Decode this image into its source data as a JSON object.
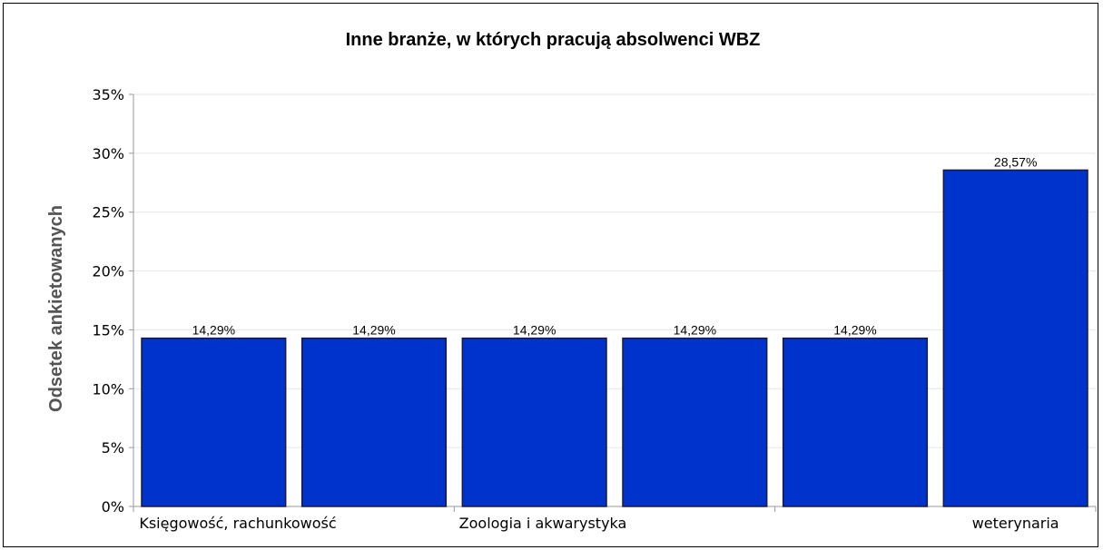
{
  "chart_data": {
    "type": "bar",
    "title": "Inne branże, w których pracują absolwenci WBZ",
    "xlabel": "",
    "ylabel": "Odsetek ankietowanych",
    "ylim": [
      0,
      35
    ],
    "yticks": [
      "0%",
      "5%",
      "10%",
      "15%",
      "20%",
      "25%",
      "30%",
      "35%"
    ],
    "ytick_values": [
      0,
      5,
      10,
      15,
      20,
      25,
      30,
      35
    ],
    "categories": [
      "Księgowość, rachunkowość",
      "",
      "Zoologia i akwarystyka",
      "",
      "",
      "weterynaria"
    ],
    "values": [
      14.29,
      14.29,
      14.29,
      14.29,
      14.29,
      28.57
    ],
    "data_labels": [
      "14,29%",
      "14,29%",
      "14,29%",
      "14,29%",
      "14,29%",
      "28,57%"
    ],
    "grid": true,
    "legend": "none",
    "colors": {
      "bar": "#0033CC",
      "bar_edge": "#1a1a40",
      "grid": "#e6e6e6",
      "axis": "#999999"
    }
  }
}
